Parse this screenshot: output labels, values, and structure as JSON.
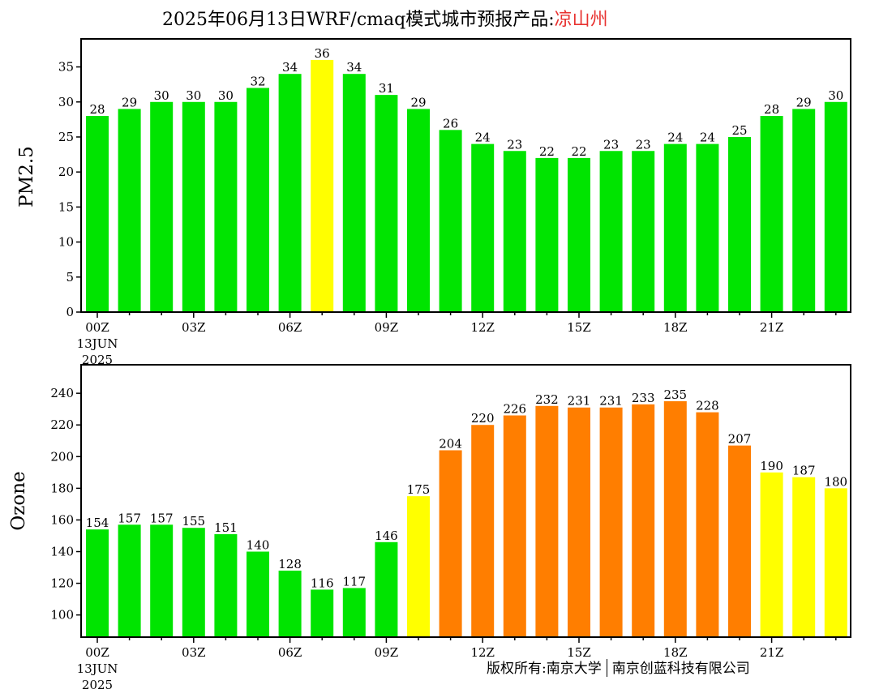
{
  "header": {
    "title_main": "2025年06月13日WRF/cmaq模式城市预报产品:",
    "title_location": "凉山州"
  },
  "footer": {
    "copyright_left": "版权所有:南京大学",
    "copyright_right": "南京创蓝科技有限公司"
  },
  "chart_data": [
    {
      "type": "bar",
      "ylabel": "PM2.5",
      "ylim": [
        0,
        39
      ],
      "yticks": [
        0,
        5,
        10,
        15,
        20,
        25,
        30,
        35
      ],
      "x": [
        0,
        1,
        2,
        3,
        4,
        5,
        6,
        7,
        8,
        9,
        10,
        11,
        12,
        13,
        14,
        15,
        16,
        17,
        18,
        19,
        20,
        21,
        22,
        23
      ],
      "xtick_labels": [
        {
          "hour": 0,
          "lines": [
            "00Z",
            "13JUN",
            "2025"
          ]
        },
        {
          "hour": 3,
          "lines": [
            "03Z"
          ]
        },
        {
          "hour": 6,
          "lines": [
            "06Z"
          ]
        },
        {
          "hour": 9,
          "lines": [
            "09Z"
          ]
        },
        {
          "hour": 12,
          "lines": [
            "12Z"
          ]
        },
        {
          "hour": 15,
          "lines": [
            "15Z"
          ]
        },
        {
          "hour": 18,
          "lines": [
            "18Z"
          ]
        },
        {
          "hour": 21,
          "lines": [
            "21Z"
          ]
        }
      ],
      "values": [
        28,
        29,
        30,
        30,
        30,
        32,
        34,
        36,
        34,
        31,
        29,
        26,
        24,
        23,
        22,
        22,
        23,
        23,
        24,
        24,
        25,
        28,
        29,
        30
      ],
      "bar_colors": [
        "#00e400",
        "#00e400",
        "#00e400",
        "#00e400",
        "#00e400",
        "#00e400",
        "#00e400",
        "#ffff00",
        "#00e400",
        "#00e400",
        "#00e400",
        "#00e400",
        "#00e400",
        "#00e400",
        "#00e400",
        "#00e400",
        "#00e400",
        "#00e400",
        "#00e400",
        "#00e400",
        "#00e400",
        "#00e400",
        "#00e400",
        "#00e400"
      ],
      "grid": false
    },
    {
      "type": "bar",
      "ylabel": "Ozone",
      "ylim": [
        86,
        258
      ],
      "yticks": [
        100,
        120,
        140,
        160,
        180,
        200,
        220,
        240
      ],
      "x": [
        0,
        1,
        2,
        3,
        4,
        5,
        6,
        7,
        8,
        9,
        10,
        11,
        12,
        13,
        14,
        15,
        16,
        17,
        18,
        19,
        20,
        21,
        22,
        23
      ],
      "xtick_labels": [
        {
          "hour": 0,
          "lines": [
            "00Z",
            "13JUN",
            "2025"
          ]
        },
        {
          "hour": 3,
          "lines": [
            "03Z"
          ]
        },
        {
          "hour": 6,
          "lines": [
            "06Z"
          ]
        },
        {
          "hour": 9,
          "lines": [
            "09Z"
          ]
        },
        {
          "hour": 12,
          "lines": [
            "12Z"
          ]
        },
        {
          "hour": 15,
          "lines": [
            "15Z"
          ]
        },
        {
          "hour": 18,
          "lines": [
            "18Z"
          ]
        },
        {
          "hour": 21,
          "lines": [
            "21Z"
          ]
        }
      ],
      "values": [
        154,
        157,
        157,
        155,
        151,
        140,
        128,
        116,
        117,
        146,
        175,
        204,
        220,
        226,
        232,
        231,
        231,
        233,
        235,
        228,
        207,
        190,
        187,
        180
      ],
      "bar_colors": [
        "#00e400",
        "#00e400",
        "#00e400",
        "#00e400",
        "#00e400",
        "#00e400",
        "#00e400",
        "#00e400",
        "#00e400",
        "#00e400",
        "#ffff00",
        "#ff7e00",
        "#ff7e00",
        "#ff7e00",
        "#ff7e00",
        "#ff7e00",
        "#ff7e00",
        "#ff7e00",
        "#ff7e00",
        "#ff7e00",
        "#ff7e00",
        "#ffff00",
        "#ffff00",
        "#ffff00"
      ],
      "grid": false
    }
  ]
}
